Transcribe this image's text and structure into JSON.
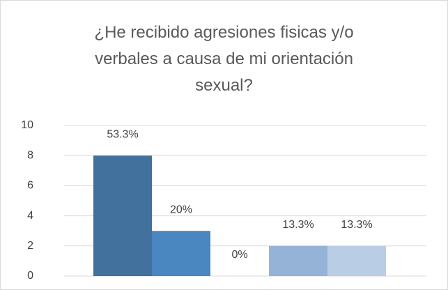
{
  "chart_data": {
    "type": "bar",
    "title": "¿He recibido agresiones fisicas y/o verbales a causa de mi orientación sexual?",
    "categories": [
      null,
      null,
      null,
      null,
      null
    ],
    "values": [
      8,
      3,
      0,
      2,
      2
    ],
    "value_labels": [
      "53.3%",
      "20%",
      "0%",
      "13.3%",
      "13.3%"
    ],
    "colors": [
      "#41719c",
      "#4a86c0",
      "#6f9fd0",
      "#95b3d7",
      "#b9cde5"
    ],
    "ylim": [
      0,
      10
    ],
    "yticks": [
      0,
      2,
      4,
      6,
      8,
      10
    ],
    "grid": true
  }
}
